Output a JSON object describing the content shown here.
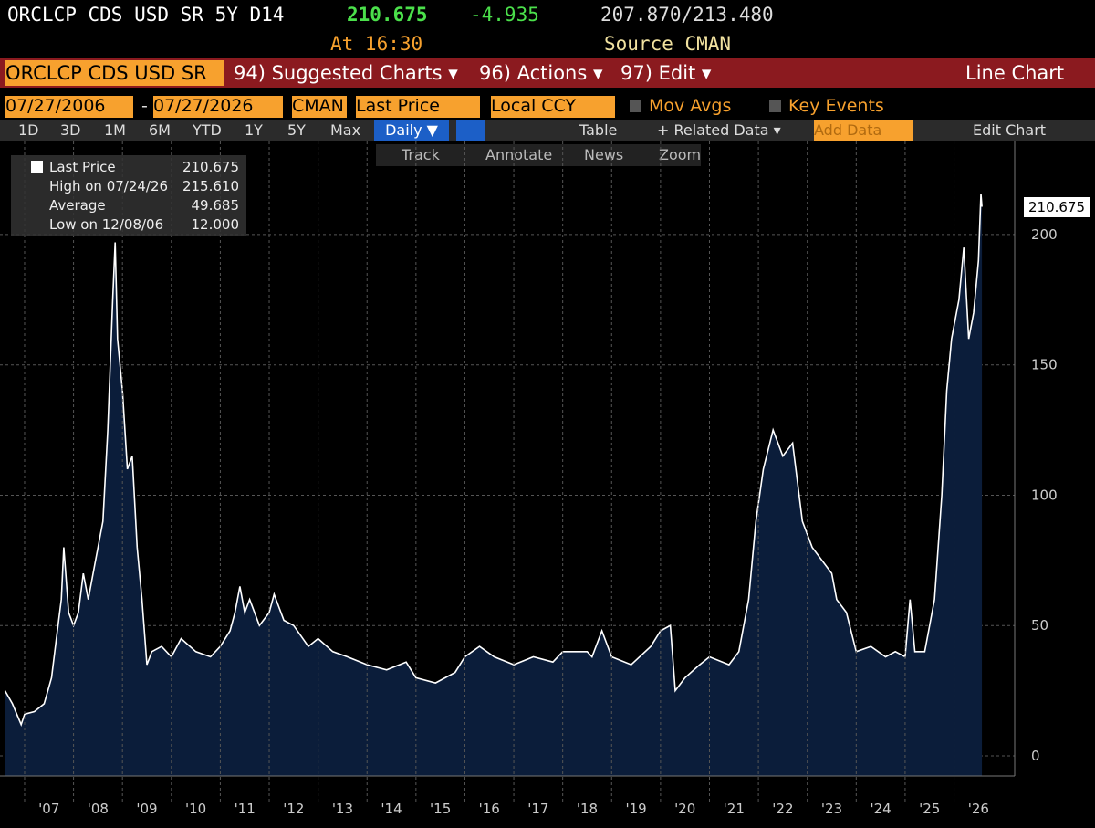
{
  "header": {
    "ticker": "ORCLCP CDS USD SR 5Y D14",
    "price": "210.675",
    "change": "-4.935",
    "range": "207.870/213.480",
    "time": "At 16:30",
    "source": "Source CMAN"
  },
  "menu": {
    "security": "ORCLCP CDS USD SR",
    "suggested": "94) Suggested Charts ▾",
    "actions": "96) Actions ▾",
    "edit": "97) Edit ▾",
    "chart_kind": "Line Chart"
  },
  "controls": {
    "start": "07/27/2006",
    "dash": "-",
    "end": "07/27/2026",
    "source": "CMAN",
    "field": "Last Price",
    "ccy": "Local CCY",
    "mov_avgs": "Mov Avgs",
    "key_events": "Key Events"
  },
  "periods": [
    "1D",
    "3D",
    "1M",
    "6M",
    "YTD",
    "1Y",
    "5Y",
    "Max"
  ],
  "toolbar": {
    "freq": "Daily ▼",
    "table": "Table",
    "related": "+ Related Data ▾",
    "add": "Add Data",
    "edit_chart": "Edit Chart"
  },
  "tools": [
    "Track",
    "Annotate",
    "News",
    "Zoom"
  ],
  "legend": [
    {
      "label": "Last Price",
      "value": "210.675"
    },
    {
      "label": "High on 07/24/26",
      "value": "215.610"
    },
    {
      "label": "Average",
      "value": "49.685"
    },
    {
      "label": "Low on 12/08/06",
      "value": "12.000"
    }
  ],
  "price_tag": "210.675",
  "chart_data": {
    "type": "area",
    "color": "#ffffff",
    "fill": "#0b1d3a",
    "grid": true,
    "xlim": [
      2006.59,
      2027.24
    ],
    "ylim": [
      -7.7,
      235.7
    ],
    "yticks": [
      0,
      50,
      100,
      150,
      200
    ],
    "xticks": [
      {
        "value": 2007,
        "label": "'07"
      },
      {
        "value": 2008,
        "label": "'08"
      },
      {
        "value": 2009,
        "label": "'09"
      },
      {
        "value": 2010,
        "label": "'10"
      },
      {
        "value": 2011,
        "label": "'11"
      },
      {
        "value": 2012,
        "label": "'12"
      },
      {
        "value": 2013,
        "label": "'13"
      },
      {
        "value": 2014,
        "label": "'14"
      },
      {
        "value": 2015,
        "label": "'15"
      },
      {
        "value": 2016,
        "label": "'16"
      },
      {
        "value": 2017,
        "label": "'17"
      },
      {
        "value": 2018,
        "label": "'18"
      },
      {
        "value": 2019,
        "label": "'19"
      },
      {
        "value": 2020,
        "label": "'20"
      },
      {
        "value": 2021,
        "label": "'21"
      },
      {
        "value": 2022,
        "label": "'22"
      },
      {
        "value": 2023,
        "label": "'23"
      },
      {
        "value": 2024,
        "label": "'24"
      },
      {
        "value": 2025,
        "label": "'25"
      },
      {
        "value": 2026,
        "label": "'26"
      }
    ],
    "x": [
      2006.6,
      2006.75,
      2006.93,
      2007.0,
      2007.2,
      2007.4,
      2007.55,
      2007.65,
      2007.75,
      2007.8,
      2007.9,
      2008.0,
      2008.1,
      2008.2,
      2008.3,
      2008.45,
      2008.6,
      2008.7,
      2008.8,
      2008.85,
      2008.9,
      2009.0,
      2009.1,
      2009.2,
      2009.3,
      2009.4,
      2009.5,
      2009.6,
      2009.8,
      2010.0,
      2010.2,
      2010.5,
      2010.8,
      2011.0,
      2011.2,
      2011.3,
      2011.4,
      2011.5,
      2011.6,
      2011.8,
      2012.0,
      2012.1,
      2012.3,
      2012.5,
      2012.8,
      2013.0,
      2013.3,
      2013.6,
      2014.0,
      2014.4,
      2014.8,
      2015.0,
      2015.4,
      2015.8,
      2016.0,
      2016.3,
      2016.6,
      2017.0,
      2017.4,
      2017.8,
      2018.0,
      2018.5,
      2018.6,
      2018.8,
      2019.0,
      2019.4,
      2019.8,
      2020.0,
      2020.2,
      2020.3,
      2020.5,
      2020.8,
      2021.0,
      2021.4,
      2021.6,
      2021.8,
      2021.95,
      2022.1,
      2022.3,
      2022.5,
      2022.7,
      2022.9,
      2023.1,
      2023.3,
      2023.5,
      2023.6,
      2023.8,
      2024.0,
      2024.3,
      2024.6,
      2024.8,
      2025.0,
      2025.1,
      2025.2,
      2025.4,
      2025.6,
      2025.75,
      2025.85,
      2025.95,
      2026.1,
      2026.2,
      2026.3,
      2026.4,
      2026.5,
      2026.55,
      2026.57
    ],
    "values": [
      25,
      20,
      12,
      16,
      17,
      20,
      30,
      45,
      60,
      80,
      55,
      50,
      55,
      70,
      60,
      75,
      90,
      125,
      175,
      197,
      160,
      140,
      110,
      115,
      80,
      60,
      35,
      40,
      42,
      38,
      45,
      40,
      38,
      42,
      48,
      55,
      65,
      55,
      60,
      50,
      55,
      62,
      52,
      50,
      42,
      45,
      40,
      38,
      35,
      33,
      36,
      30,
      28,
      32,
      38,
      42,
      38,
      35,
      38,
      36,
      40,
      40,
      38,
      48,
      38,
      35,
      42,
      48,
      50,
      25,
      30,
      35,
      38,
      35,
      40,
      60,
      90,
      110,
      125,
      115,
      120,
      90,
      80,
      75,
      70,
      60,
      55,
      40,
      42,
      38,
      40,
      38,
      60,
      40,
      40,
      60,
      100,
      140,
      160,
      175,
      195,
      160,
      170,
      190,
      215.61,
      210.675
    ]
  }
}
